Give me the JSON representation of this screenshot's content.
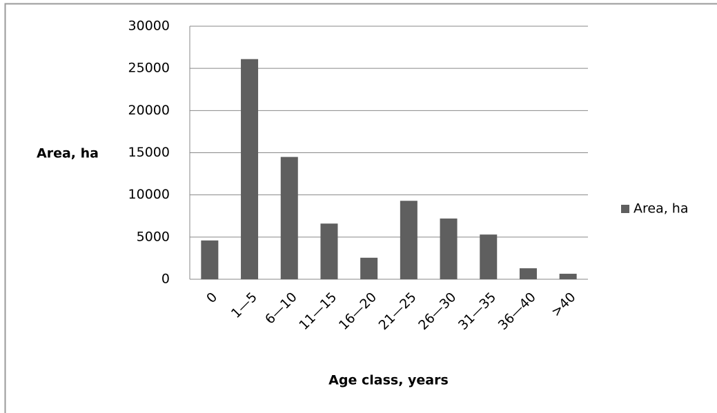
{
  "chart_data": {
    "type": "bar",
    "y_label": "Area, ha",
    "x_label": "Age class, years",
    "categories": [
      "0",
      "1—5",
      "6—10",
      "11—15",
      "16—20",
      "21—25",
      "26—30",
      "31—35",
      "36—40",
      ">40"
    ],
    "series": [
      {
        "name": "Area, ha",
        "color": "#5f5f5f",
        "values": [
          4600,
          26100,
          14500,
          6600,
          2550,
          9300,
          7200,
          5300,
          1300,
          650
        ]
      }
    ],
    "ylim": [
      0,
      30000
    ],
    "yticks": [
      0,
      5000,
      10000,
      15000,
      20000,
      25000,
      30000
    ],
    "grid": true,
    "legend": "right"
  }
}
